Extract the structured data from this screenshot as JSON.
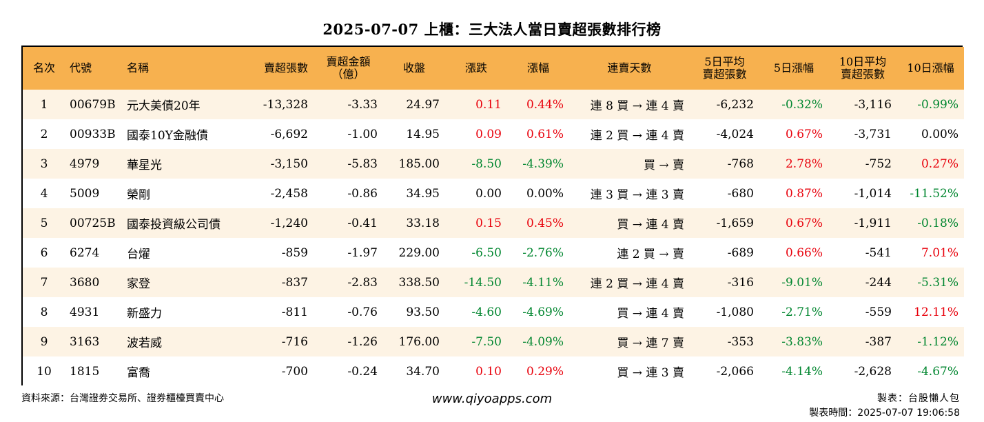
{
  "title": "2025-07-07 上櫃：三大法人當日賣超張數排行榜",
  "headers": {
    "rank": "名次",
    "code": "代號",
    "name": "名稱",
    "sell_volume": "賣超張數",
    "sell_amount_l1": "賣超金額",
    "sell_amount_l2": "（億）",
    "close": "收盤",
    "change": "漲跌",
    "pct": "漲幅",
    "streak": "連賣天數",
    "avg5_l1": "5日平均",
    "avg5_l2": "賣超張數",
    "pct5": "5日漲幅",
    "avg10_l1": "10日平均",
    "avg10_l2": "賣超張數",
    "pct10": "10日漲幅"
  },
  "rows": [
    {
      "rank": "1",
      "code": "00679B",
      "name": "元大美債20年",
      "sell_volume": "-13,328",
      "sell_amount": "-3.33",
      "close": "24.97",
      "change": "0.11",
      "change_color": "red",
      "pct": "0.44%",
      "pct_color": "red",
      "streak": "連 8 買 → 連 4 賣",
      "avg5": "-6,232",
      "pct5": "-0.32%",
      "pct5_color": "green",
      "avg10": "-3,116",
      "pct10": "-0.99%",
      "pct10_color": "green"
    },
    {
      "rank": "2",
      "code": "00933B",
      "name": "國泰10Y金融債",
      "sell_volume": "-6,692",
      "sell_amount": "-1.00",
      "close": "14.95",
      "change": "0.09",
      "change_color": "red",
      "pct": "0.61%",
      "pct_color": "red",
      "streak": "連 2 買 → 連 4 賣",
      "avg5": "-4,024",
      "pct5": "0.67%",
      "pct5_color": "red",
      "avg10": "-3,731",
      "pct10": "0.00%",
      "pct10_color": "black"
    },
    {
      "rank": "3",
      "code": "4979",
      "name": "華星光",
      "sell_volume": "-3,150",
      "sell_amount": "-5.83",
      "close": "185.00",
      "change": "-8.50",
      "change_color": "green",
      "pct": "-4.39%",
      "pct_color": "green",
      "streak": "買 → 賣",
      "avg5": "-768",
      "pct5": "2.78%",
      "pct5_color": "red",
      "avg10": "-752",
      "pct10": "0.27%",
      "pct10_color": "red"
    },
    {
      "rank": "4",
      "code": "5009",
      "name": "榮剛",
      "sell_volume": "-2,458",
      "sell_amount": "-0.86",
      "close": "34.95",
      "change": "0.00",
      "change_color": "black",
      "pct": "0.00%",
      "pct_color": "black",
      "streak": "連 3 買 → 連 3 賣",
      "avg5": "-680",
      "pct5": "0.87%",
      "pct5_color": "red",
      "avg10": "-1,014",
      "pct10": "-11.52%",
      "pct10_color": "green"
    },
    {
      "rank": "5",
      "code": "00725B",
      "name": "國泰投資級公司債",
      "sell_volume": "-1,240",
      "sell_amount": "-0.41",
      "close": "33.18",
      "change": "0.15",
      "change_color": "red",
      "pct": "0.45%",
      "pct_color": "red",
      "streak": "買 → 連 4 賣",
      "avg5": "-1,659",
      "pct5": "0.67%",
      "pct5_color": "red",
      "avg10": "-1,911",
      "pct10": "-0.18%",
      "pct10_color": "green"
    },
    {
      "rank": "6",
      "code": "6274",
      "name": "台燿",
      "sell_volume": "-859",
      "sell_amount": "-1.97",
      "close": "229.00",
      "change": "-6.50",
      "change_color": "green",
      "pct": "-2.76%",
      "pct_color": "green",
      "streak": "連 2 買 → 賣",
      "avg5": "-689",
      "pct5": "0.66%",
      "pct5_color": "red",
      "avg10": "-541",
      "pct10": "7.01%",
      "pct10_color": "red"
    },
    {
      "rank": "7",
      "code": "3680",
      "name": "家登",
      "sell_volume": "-837",
      "sell_amount": "-2.83",
      "close": "338.50",
      "change": "-14.50",
      "change_color": "green",
      "pct": "-4.11%",
      "pct_color": "green",
      "streak": "連 2 買 → 連 4 賣",
      "avg5": "-316",
      "pct5": "-9.01%",
      "pct5_color": "green",
      "avg10": "-244",
      "pct10": "-5.31%",
      "pct10_color": "green"
    },
    {
      "rank": "8",
      "code": "4931",
      "name": "新盛力",
      "sell_volume": "-811",
      "sell_amount": "-0.76",
      "close": "93.50",
      "change": "-4.60",
      "change_color": "green",
      "pct": "-4.69%",
      "pct_color": "green",
      "streak": "買 → 連 4 賣",
      "avg5": "-1,080",
      "pct5": "-2.71%",
      "pct5_color": "green",
      "avg10": "-559",
      "pct10": "12.11%",
      "pct10_color": "red"
    },
    {
      "rank": "9",
      "code": "3163",
      "name": "波若威",
      "sell_volume": "-716",
      "sell_amount": "-1.26",
      "close": "176.00",
      "change": "-7.50",
      "change_color": "green",
      "pct": "-4.09%",
      "pct_color": "green",
      "streak": "買 → 連 7 賣",
      "avg5": "-353",
      "pct5": "-3.83%",
      "pct5_color": "green",
      "avg10": "-387",
      "pct10": "-1.12%",
      "pct10_color": "green"
    },
    {
      "rank": "10",
      "code": "1815",
      "name": "富喬",
      "sell_volume": "-700",
      "sell_amount": "-0.24",
      "close": "34.70",
      "change": "0.10",
      "change_color": "red",
      "pct": "0.29%",
      "pct_color": "red",
      "streak": "買 → 連 3 賣",
      "avg5": "-2,066",
      "pct5": "-4.14%",
      "pct5_color": "green",
      "avg10": "-2,628",
      "pct10": "-4.67%",
      "pct10_color": "green"
    }
  ],
  "footer": {
    "source": "資料來源：台灣證券交易所、證券櫃檯買賣中心",
    "website": "www.qiyoapps.com",
    "maker": "製表：台股懶人包",
    "made_time": "製表時間：2025-07-07 19:06:58"
  },
  "colors": {
    "header_bg": "#f7b14f",
    "odd_row_bg": "#fdf3e4",
    "up": "#e8000b",
    "down": "#00862f"
  }
}
